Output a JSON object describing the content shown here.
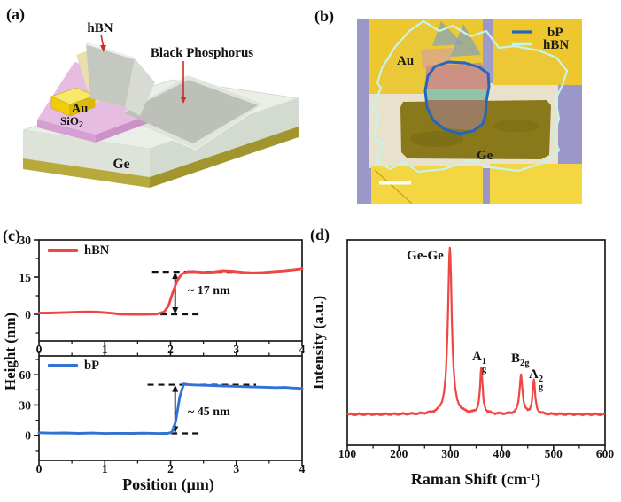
{
  "panels": {
    "a": {
      "label": "(a)",
      "labels": {
        "hbn": "hBN",
        "black_phosphorus": "Black Phosphorus",
        "au": "Au",
        "sio2_base": "SiO",
        "sio2_sub": "2",
        "ge": "Ge"
      }
    },
    "b": {
      "label": "(b)",
      "labels": {
        "au": "Au",
        "ge": "Ge"
      },
      "legend": [
        {
          "name": "bP",
          "color": "#2565bb"
        },
        {
          "name": "hBN",
          "color": "#c6f3ea"
        }
      ]
    },
    "c": {
      "label": "(c)",
      "ylabel": "Height (nm)",
      "xlabel": "Position (μm)",
      "annotations": {
        "hbn_step": "~ 17 nm",
        "bp_step": "~ 45 nm"
      }
    },
    "d": {
      "label": "(d)",
      "ylabel": "Intensity (a.u.)",
      "xlabel_pre": "Raman Shift (cm",
      "xlabel_sup": "-1",
      "xlabel_post": ")",
      "peak_labels": {
        "gege": "Ge-Ge",
        "a1_base": "A",
        "a1_sup": "1",
        "a1_sub": "g",
        "b2g_base": "B",
        "b2g_sub": "2g",
        "a2_base": "A",
        "a2_sup": "2",
        "a2_sub": "g"
      }
    }
  },
  "colors": {
    "curve_red": "#f04545",
    "curve_blue": "#3272d2",
    "bp_outline": "#2565bb",
    "hbn_outline": "#c6f3ea"
  },
  "chart_data": [
    {
      "id": "hbn_height_profile",
      "type": "line",
      "xlabel": "Position (μm)",
      "ylabel": "Height (nm)",
      "xlim": [
        0,
        4
      ],
      "ylim": [
        -10.7,
        30
      ],
      "xticks": [
        0,
        1,
        2,
        3,
        4
      ],
      "yticks": [
        0,
        15,
        30
      ],
      "step_height_nm": 17,
      "annotation": "~ 17 nm",
      "dashed_lines": [
        {
          "y": 17.1,
          "x1": 1.72,
          "x2": 3.06
        },
        {
          "y": 0,
          "x1": 1.2,
          "x2": 2.46
        }
      ],
      "arrow": {
        "x": 2.07,
        "y1": 0,
        "y2": 17.1
      },
      "series": [
        {
          "name": "hBN",
          "color": "#f04545",
          "x": [
            0,
            0.15,
            0.3,
            0.45,
            0.6,
            0.75,
            0.9,
            1.05,
            1.2,
            1.35,
            1.5,
            1.65,
            1.8,
            1.9,
            1.97,
            2.03,
            2.1,
            2.17,
            2.25,
            2.35,
            2.5,
            2.65,
            2.8,
            2.95,
            3.1,
            3.25,
            3.4,
            3.55,
            3.7,
            3.85,
            4.0
          ],
          "y": [
            0.5,
            0.55,
            0.65,
            0.8,
            0.95,
            1.0,
            0.9,
            0.6,
            0.2,
            0.05,
            0.0,
            0.05,
            0.2,
            1.0,
            3.5,
            8.5,
            13.5,
            16.2,
            17.1,
            17.2,
            16.9,
            17.0,
            17.5,
            17.3,
            16.9,
            16.7,
            16.8,
            17.1,
            17.4,
            17.8,
            18.3
          ]
        }
      ]
    },
    {
      "id": "bp_height_profile",
      "type": "line",
      "xlabel": "Position (μm)",
      "ylabel": "Height (nm)",
      "xlim": [
        0,
        4
      ],
      "ylim": [
        -24.7,
        78.5
      ],
      "xticks": [
        0,
        1,
        2,
        3,
        4
      ],
      "yticks": [
        0,
        30,
        60
      ],
      "step_height_nm": 45,
      "annotation": "~ 45 nm",
      "dashed_lines": [
        {
          "y": 50,
          "x1": 1.65,
          "x2": 3.3
        },
        {
          "y": 2,
          "x1": 1.2,
          "x2": 2.46
        }
      ],
      "arrow": {
        "x": 2.07,
        "y1": 2,
        "y2": 50
      },
      "series": [
        {
          "name": "bP",
          "color": "#3272d2",
          "x": [
            0,
            0.2,
            0.4,
            0.6,
            0.8,
            1.0,
            1.2,
            1.4,
            1.6,
            1.8,
            1.95,
            2.02,
            2.08,
            2.14,
            2.2,
            2.26,
            2.35,
            2.5,
            2.65,
            2.8,
            3.0,
            3.2,
            3.4,
            3.6,
            3.75,
            3.85,
            3.95,
            4.0
          ],
          "y": [
            2.6,
            2.2,
            2.4,
            2.0,
            2.3,
            1.9,
            2.1,
            2.0,
            2.2,
            1.9,
            2.0,
            3.0,
            14.0,
            38.0,
            50.8,
            50.2,
            49.8,
            49.5,
            49.2,
            48.8,
            48.4,
            48.0,
            47.6,
            47.2,
            47.4,
            46.8,
            46.5,
            46.2
          ]
        }
      ]
    },
    {
      "id": "raman_spectrum",
      "type": "line",
      "xlabel": "Raman Shift (cm-1)",
      "ylabel": "Intensity (a.u.)",
      "xlim": [
        100,
        600
      ],
      "xticks": [
        100,
        200,
        300,
        400,
        500,
        600
      ],
      "baseline": 0.03,
      "color": "#f04545",
      "peaks": [
        {
          "label": "Ge-Ge",
          "center": 299,
          "height": 1.0,
          "hwhm": 4.5
        },
        {
          "label": "Ag1",
          "center": 360,
          "height": 0.27,
          "hwhm": 3.0
        },
        {
          "label": "B2g",
          "center": 437,
          "height": 0.235,
          "hwhm": 3.5
        },
        {
          "label": "Ag2",
          "center": 462,
          "height": 0.2,
          "hwhm": 3.0
        }
      ]
    }
  ]
}
